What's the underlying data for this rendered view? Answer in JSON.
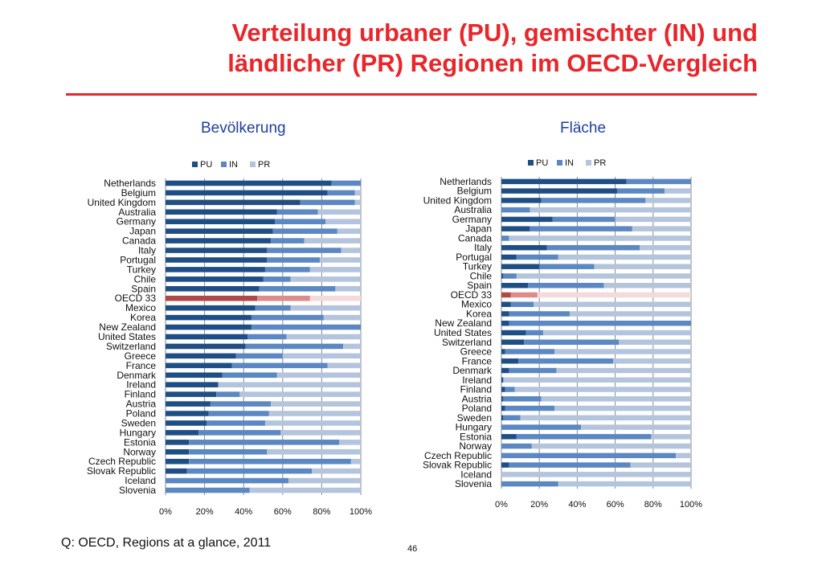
{
  "title_lines": [
    "Verteilung urbaner (PU), gemischter (IN) und",
    "ländlicher (PR) Regionen im OECD-Vergleich"
  ],
  "source": "Q: OECD, Regions at a glance, 2011",
  "page_number": "46",
  "colors": {
    "title": "#e8262b",
    "subtitle": "#1f3f9c",
    "PU": "#1f4e84",
    "IN": "#5b87c2",
    "PR": "#b4c4dc",
    "OECD_PU": "#b04848",
    "OECD_IN": "#dd8b8b",
    "OECD_PR": "#f4dada"
  },
  "chart_data": [
    {
      "type": "bar",
      "orientation": "horizontal",
      "stacked": "percent",
      "title": "Bevölkerung",
      "legend_position": "top",
      "xlim": [
        0,
        100
      ],
      "x_ticks": [
        "0%",
        "20%",
        "40%",
        "60%",
        "80%",
        "100%"
      ],
      "grid": true,
      "categories": [
        "Netherlands",
        "Belgium",
        "United Kingdom",
        "Australia",
        "Germany",
        "Japan",
        "Canada",
        "Italy",
        "Portugal",
        "Turkey",
        "Chile",
        "Spain",
        "OECD 33",
        "Mexico",
        "Korea",
        "New Zealand",
        "United States",
        "Switzerland",
        "Greece",
        "France",
        "Denmark",
        "Ireland",
        "Finland",
        "Austria",
        "Poland",
        "Sweden",
        "Hungary",
        "Estonia",
        "Norway",
        "Czech Republic",
        "Slovak Republic",
        "Iceland",
        "Slovenia"
      ],
      "highlight_category": "OECD 33",
      "series": [
        {
          "name": "PU",
          "values": [
            85,
            83,
            69,
            57,
            56,
            55,
            54,
            52,
            52,
            51,
            50,
            48,
            47,
            46,
            44,
            44,
            42,
            41,
            36,
            34,
            29,
            27,
            26,
            23,
            22,
            21,
            17,
            12,
            12,
            12,
            11,
            0,
            0
          ]
        },
        {
          "name": "IN",
          "values": [
            15,
            14,
            28,
            21,
            26,
            33,
            17,
            38,
            27,
            23,
            14,
            39,
            27,
            18,
            37,
            56,
            20,
            50,
            24,
            49,
            28,
            0,
            12,
            31,
            31,
            30,
            42,
            77,
            40,
            83,
            64,
            63,
            43
          ]
        },
        {
          "name": "PR",
          "values": [
            0,
            3,
            3,
            22,
            18,
            12,
            29,
            10,
            21,
            26,
            36,
            13,
            26,
            36,
            19,
            0,
            38,
            9,
            40,
            17,
            43,
            73,
            62,
            46,
            47,
            49,
            41,
            11,
            48,
            5,
            25,
            37,
            57
          ]
        }
      ]
    },
    {
      "type": "bar",
      "orientation": "horizontal",
      "stacked": "percent",
      "title": "Fläche",
      "legend_position": "top",
      "xlim": [
        0,
        100
      ],
      "x_ticks": [
        "0%",
        "20%",
        "40%",
        "60%",
        "80%",
        "100%"
      ],
      "grid": true,
      "categories": [
        "Netherlands",
        "Belgium",
        "United Kingdom",
        "Australia",
        "Germany",
        "Japan",
        "Canada",
        "Italy",
        "Portugal",
        "Turkey",
        "Chile",
        "Spain",
        "OECD 33",
        "Mexico",
        "Korea",
        "New Zealand",
        "United States",
        "Switzerland",
        "Greece",
        "France",
        "Denmark",
        "Ireland",
        "Finland",
        "Austria",
        "Poland",
        "Sweden",
        "Hungary",
        "Estonia",
        "Norway",
        "Czech Republic",
        "Slovak Republic",
        "Iceland",
        "Slovenia"
      ],
      "highlight_category": "OECD 33",
      "series": [
        {
          "name": "PU",
          "values": [
            66,
            61,
            21,
            0,
            27,
            15,
            0,
            24,
            8,
            20,
            1,
            14,
            5,
            5,
            4,
            4,
            13,
            12,
            2,
            9,
            4,
            1,
            2,
            1,
            2,
            1,
            0,
            8,
            0,
            0,
            4,
            0,
            0
          ]
        },
        {
          "name": "IN",
          "values": [
            34,
            25,
            55,
            15,
            33,
            54,
            4,
            49,
            22,
            29,
            7,
            40,
            14,
            12,
            32,
            96,
            9,
            50,
            26,
            50,
            25,
            0,
            5,
            20,
            26,
            9,
            42,
            71,
            16,
            92,
            64,
            0,
            30
          ]
        },
        {
          "name": "PR",
          "values": [
            0,
            14,
            24,
            85,
            40,
            31,
            96,
            27,
            70,
            51,
            92,
            46,
            81,
            83,
            64,
            0,
            78,
            38,
            72,
            41,
            71,
            99,
            93,
            79,
            72,
            90,
            58,
            21,
            84,
            8,
            32,
            100,
            70
          ]
        }
      ]
    }
  ]
}
